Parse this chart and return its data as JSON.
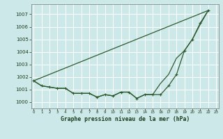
{
  "title": "Graphe pression niveau de la mer (hPa)",
  "bg_color": "#cce8e8",
  "grid_color": "#ffffff",
  "line_color": "#2d5a2d",
  "ylim": [
    999.5,
    1007.8
  ],
  "yticks": [
    1000,
    1001,
    1002,
    1003,
    1004,
    1005,
    1006,
    1007
  ],
  "xlim": [
    -0.3,
    23.3
  ],
  "x_labels": [
    "0",
    "1",
    "2",
    "3",
    "4",
    "5",
    "6",
    "7",
    "8",
    "9",
    "10",
    "11",
    "12",
    "13",
    "14",
    "15",
    "16",
    "17",
    "18",
    "19",
    "20",
    "21",
    "22",
    "23"
  ],
  "line1": [
    [
      0,
      22
    ],
    [
      1001.7,
      1007.3
    ]
  ],
  "line2_x": [
    0,
    1,
    2,
    3,
    4,
    5,
    6,
    7,
    8,
    9,
    10,
    11,
    12,
    13,
    14,
    15,
    16,
    17,
    18,
    19,
    20,
    21,
    22
  ],
  "line2_y": [
    1001.7,
    1001.3,
    1001.2,
    1001.1,
    1001.1,
    1000.7,
    1000.7,
    1000.7,
    1000.4,
    1000.6,
    1000.5,
    1000.8,
    1000.8,
    1000.3,
    1000.6,
    1000.6,
    1001.5,
    1002.2,
    1003.5,
    1004.1,
    1005.0,
    1006.2,
    1007.3
  ],
  "line3_x": [
    0,
    1,
    2,
    3,
    4,
    5,
    6,
    7,
    8,
    9,
    10,
    11,
    12,
    13,
    14,
    15,
    16,
    17,
    18,
    19,
    20,
    21,
    22
  ],
  "line3_y": [
    1001.7,
    1001.3,
    1001.2,
    1001.1,
    1001.1,
    1000.7,
    1000.7,
    1000.7,
    1000.4,
    1000.6,
    1000.5,
    1000.8,
    1000.8,
    1000.3,
    1000.6,
    1000.6,
    1000.6,
    1001.3,
    1002.2,
    1004.1,
    1005.0,
    1006.3,
    1007.3
  ]
}
